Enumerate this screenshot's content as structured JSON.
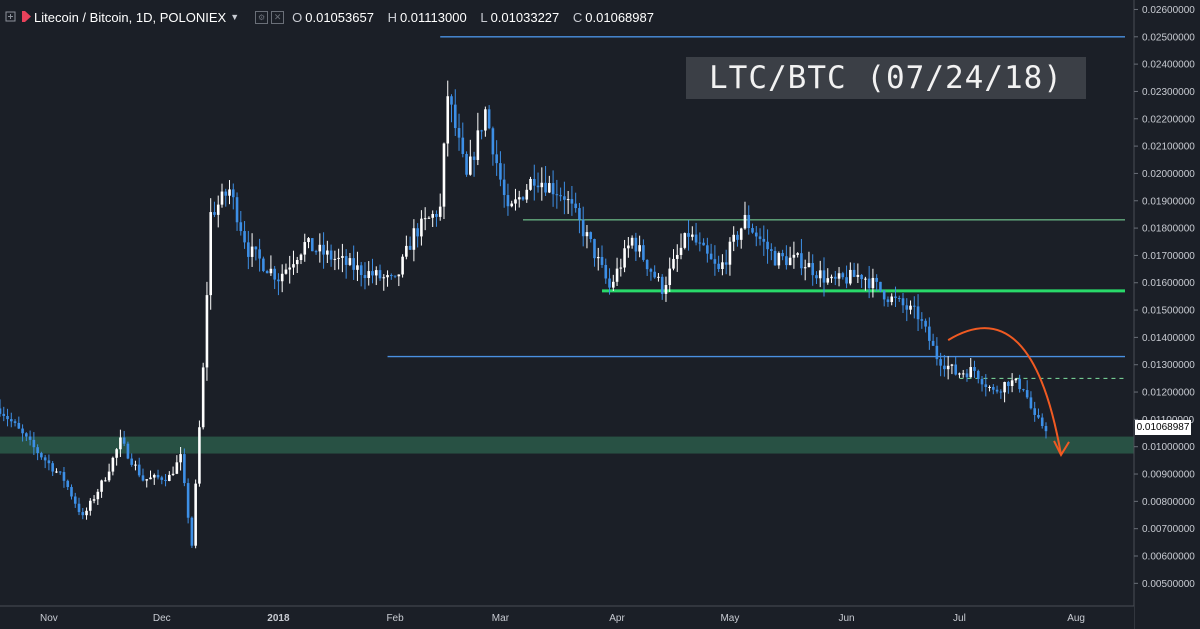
{
  "header": {
    "symbol_title": "Litecoin / Bitcoin, 1D, POLONIEX",
    "open_label": "O",
    "open": "0.01053657",
    "high_label": "H",
    "high": "0.01113000",
    "low_label": "L",
    "low": "0.01033227",
    "close_label": "C",
    "close": "0.01068987"
  },
  "stamp": "LTC/BTC  (07/24/18)",
  "price_tag": "0.01068987",
  "colors": {
    "background": "#1b1f27",
    "up": "#ffffff",
    "down": "#3d8fe6",
    "blue_line": "#4a90e2",
    "green_line": "#7fe0a0",
    "green_zone": "#2a5b4a",
    "arrow": "#f05a22",
    "flag": "#e8415a"
  },
  "chart_data": {
    "type": "candlestick",
    "x_axis": {
      "labels": [
        "Nov",
        "Dec",
        "2018",
        "Feb",
        "Mar",
        "Apr",
        "May",
        "Jun",
        "Jul",
        "Aug"
      ],
      "start": "2017-10-19",
      "end": "2018-08-14"
    },
    "y_axis": {
      "min": 0.0045,
      "max": 0.0262,
      "ticks": [
        "0.00500000",
        "0.00600000",
        "0.00700000",
        "0.00800000",
        "0.00900000",
        "0.01000000",
        "0.01100000",
        "0.01200000",
        "0.01300000",
        "0.01400000",
        "0.01500000",
        "0.01600000",
        "0.01700000",
        "0.01800000",
        "0.01900000",
        "0.02000000",
        "0.02100000",
        "0.02200000",
        "0.02300000",
        "0.02400000",
        "0.02500000",
        "0.02600000"
      ]
    },
    "close_series": [
      {
        "date": "2017-10-19",
        "close": 0.0114
      },
      {
        "date": "2017-10-27",
        "close": 0.0101
      },
      {
        "date": "2017-11-05",
        "close": 0.0088
      },
      {
        "date": "2017-11-10",
        "close": 0.0074
      },
      {
        "date": "2017-11-16",
        "close": 0.0089
      },
      {
        "date": "2017-11-20",
        "close": 0.0102
      },
      {
        "date": "2017-11-26",
        "close": 0.0088
      },
      {
        "date": "2017-12-03",
        "close": 0.0089
      },
      {
        "date": "2017-12-06",
        "close": 0.0096
      },
      {
        "date": "2017-12-09",
        "close": 0.0064
      },
      {
        "date": "2017-12-12",
        "close": 0.0128
      },
      {
        "date": "2017-12-14",
        "close": 0.0185
      },
      {
        "date": "2017-12-19",
        "close": 0.0194
      },
      {
        "date": "2017-12-24",
        "close": 0.0172
      },
      {
        "date": "2018-01-01",
        "close": 0.0162
      },
      {
        "date": "2018-01-08",
        "close": 0.0174
      },
      {
        "date": "2018-01-14",
        "close": 0.017
      },
      {
        "date": "2018-01-22",
        "close": 0.0165
      },
      {
        "date": "2018-02-01",
        "close": 0.016
      },
      {
        "date": "2018-02-06",
        "close": 0.0178
      },
      {
        "date": "2018-02-13",
        "close": 0.0187
      },
      {
        "date": "2018-02-15",
        "close": 0.0229
      },
      {
        "date": "2018-02-20",
        "close": 0.0198
      },
      {
        "date": "2018-02-25",
        "close": 0.0223
      },
      {
        "date": "2018-03-03",
        "close": 0.0185
      },
      {
        "date": "2018-03-10",
        "close": 0.0199
      },
      {
        "date": "2018-03-18",
        "close": 0.0192
      },
      {
        "date": "2018-03-25",
        "close": 0.0174
      },
      {
        "date": "2018-03-30",
        "close": 0.0158
      },
      {
        "date": "2018-04-05",
        "close": 0.0176
      },
      {
        "date": "2018-04-13",
        "close": 0.0158
      },
      {
        "date": "2018-04-20",
        "close": 0.0178
      },
      {
        "date": "2018-04-28",
        "close": 0.0164
      },
      {
        "date": "2018-05-05",
        "close": 0.0183
      },
      {
        "date": "2018-05-13",
        "close": 0.0169
      },
      {
        "date": "2018-05-20",
        "close": 0.0168
      },
      {
        "date": "2018-05-28",
        "close": 0.016
      },
      {
        "date": "2018-06-05",
        "close": 0.0163
      },
      {
        "date": "2018-06-12",
        "close": 0.0155
      },
      {
        "date": "2018-06-20",
        "close": 0.0148
      },
      {
        "date": "2018-06-25",
        "close": 0.0133
      },
      {
        "date": "2018-06-30",
        "close": 0.0127
      },
      {
        "date": "2018-07-05",
        "close": 0.0128
      },
      {
        "date": "2018-07-10",
        "close": 0.012
      },
      {
        "date": "2018-07-14",
        "close": 0.0124
      },
      {
        "date": "2018-07-18",
        "close": 0.0122
      },
      {
        "date": "2018-07-21",
        "close": 0.011
      },
      {
        "date": "2018-07-24",
        "close": 0.0107
      }
    ],
    "horizontal_lines": [
      {
        "style": "blue",
        "value": 0.025,
        "from": "2018-02-13",
        "to": "2018-08-14"
      },
      {
        "style": "blue",
        "value": 0.0133,
        "from": "2018-01-30",
        "to": "2018-08-14"
      },
      {
        "style": "green",
        "value": 0.0183,
        "from": "2018-03-07",
        "to": "2018-08-14"
      },
      {
        "style": "green-bold",
        "value": 0.0157,
        "from": "2018-03-28",
        "to": "2018-08-14"
      },
      {
        "style": "green-dashed",
        "value": 0.0125,
        "from": "2018-07-01",
        "to": "2018-08-14"
      }
    ],
    "support_zone": {
      "low": 0.00975,
      "high": 0.01037
    },
    "projection_arrow": {
      "from": {
        "date": "2018-06-28",
        "price": 0.0139
      },
      "peak": {
        "date": "2018-07-15",
        "price": 0.0143
      },
      "to": {
        "date": "2018-07-28",
        "price": 0.0097
      }
    },
    "grid": false,
    "legend": "none"
  }
}
